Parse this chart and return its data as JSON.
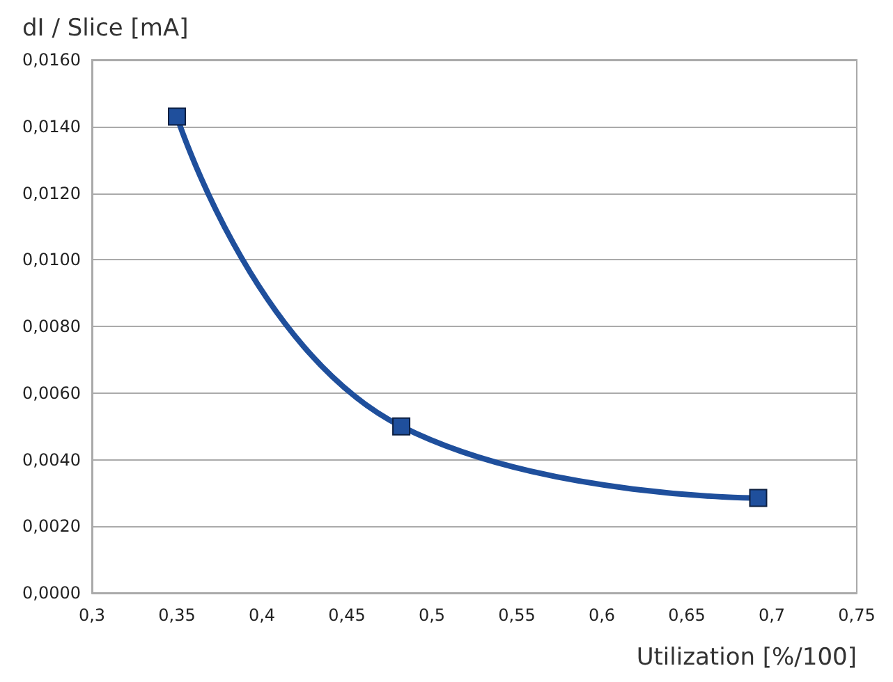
{
  "chart_data": {
    "type": "line",
    "xlabel": "Utilization [%/100]",
    "ylabel": "dI / Slice [mA]",
    "x": [
      0.35,
      0.482,
      0.692
    ],
    "series": [
      {
        "color": "#1f4f9c",
        "values": [
          0.0143,
          0.005,
          0.00285
        ]
      }
    ],
    "xlim": [
      0.3,
      0.75
    ],
    "xticks": [
      {
        "value": 0.3,
        "label": "0,3"
      },
      {
        "value": 0.35,
        "label": "0,35"
      },
      {
        "value": 0.4,
        "label": "0,4"
      },
      {
        "value": 0.45,
        "label": "0,45"
      },
      {
        "value": 0.5,
        "label": "0,5"
      },
      {
        "value": 0.55,
        "label": "0,55"
      },
      {
        "value": 0.6,
        "label": "0,6"
      },
      {
        "value": 0.65,
        "label": "0,65"
      },
      {
        "value": 0.7,
        "label": "0,7"
      },
      {
        "value": 0.75,
        "label": "0,75"
      }
    ],
    "ylim": [
      0,
      0.016
    ],
    "yticks": [
      {
        "value": 0,
        "label": "0,0000"
      },
      {
        "value": 0.002,
        "label": "0,0020"
      },
      {
        "value": 0.004,
        "label": "0,0040"
      },
      {
        "value": 0.006,
        "label": "0,0060"
      },
      {
        "value": 0.008,
        "label": "0,0080"
      },
      {
        "value": 0.01,
        "label": "0,0100"
      },
      {
        "value": 0.012,
        "label": "0,0120"
      },
      {
        "value": 0.014,
        "label": "0,0140"
      },
      {
        "value": 0.016,
        "label": "0,0160"
      }
    ],
    "grid": "y",
    "marker": "square",
    "line_style": "solid"
  }
}
